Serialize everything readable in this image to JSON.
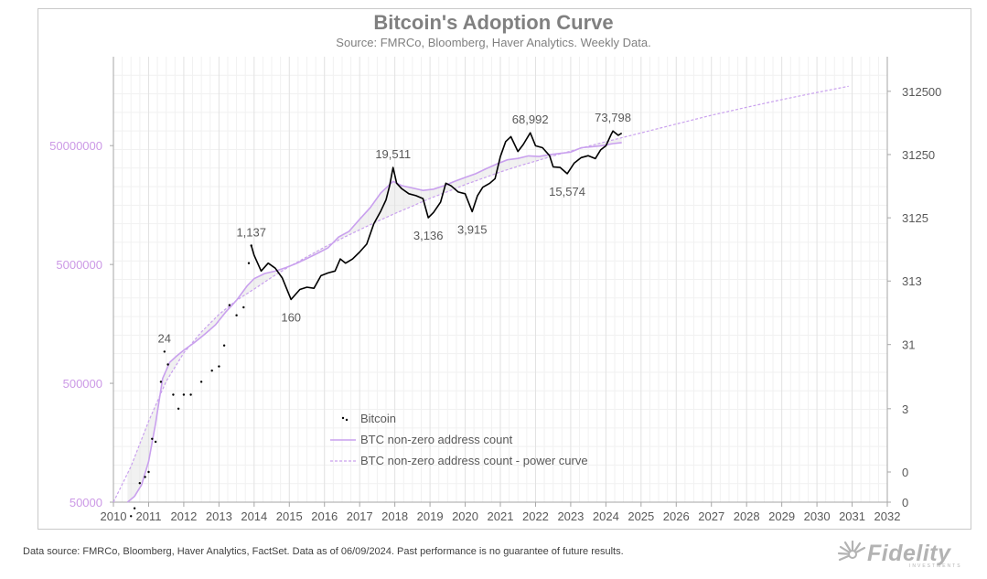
{
  "chart_data": {
    "type": "line",
    "title": "Bitcoin's Adoption Curve",
    "subtitle": "Source: FMRCo, Bloomberg, Haver Analytics. Weekly Data.",
    "x_axis": {
      "range": [
        2010,
        2032
      ],
      "ticks": [
        "2010",
        "2011",
        "2012",
        "2013",
        "2014",
        "2015",
        "2016",
        "2017",
        "2018",
        "2019",
        "2020",
        "2021",
        "2022",
        "2023",
        "2024",
        "2025",
        "2026",
        "2027",
        "2028",
        "2029",
        "2030",
        "2031",
        "2032"
      ]
    },
    "y_left": {
      "scale": "log",
      "range": [
        50000,
        280000000
      ],
      "ticks": [
        {
          "value": 50000,
          "label": "50000"
        },
        {
          "value": 500000,
          "label": "500000"
        },
        {
          "value": 5000000,
          "label": "5000000"
        },
        {
          "value": 50000000,
          "label": "50000000"
        }
      ],
      "color": "#cc99e6"
    },
    "y_right": {
      "scale": "log",
      "ticks": [
        {
          "value": 0.1,
          "label": "0"
        },
        {
          "value": 0.3,
          "label": "0"
        },
        {
          "value": 3,
          "label": "3"
        },
        {
          "value": 31,
          "label": "31"
        },
        {
          "value": 313,
          "label": "313"
        },
        {
          "value": 3125,
          "label": "3125"
        },
        {
          "value": 31250,
          "label": "31250"
        },
        {
          "value": 312500,
          "label": "312500"
        }
      ],
      "range": [
        0.1,
        1100000
      ]
    },
    "grid": true,
    "legend": {
      "placement": "bottom-center",
      "entries": [
        {
          "name": "Bitcoin",
          "style": "dots"
        },
        {
          "name": "BTC non-zero address count",
          "style": "solid"
        },
        {
          "name": "BTC non-zero address count - power curve",
          "style": "dashed"
        }
      ]
    },
    "annotations": [
      {
        "label": "24",
        "x": 2011.45,
        "y": 24
      },
      {
        "label": "1,137",
        "x": 2013.92,
        "y": 1137
      },
      {
        "label": "160",
        "x": 2015.05,
        "y": 160
      },
      {
        "label": "19,511",
        "x": 2017.95,
        "y": 19511
      },
      {
        "label": "3,136",
        "x": 2018.95,
        "y": 3136
      },
      {
        "label": "3,915",
        "x": 2020.2,
        "y": 3915
      },
      {
        "label": "68,992",
        "x": 2021.85,
        "y": 68992
      },
      {
        "label": "15,574",
        "x": 2022.9,
        "y": 15574
      },
      {
        "label": "73,798",
        "x": 2024.2,
        "y": 73798
      }
    ],
    "series": [
      {
        "name": "Bitcoin",
        "axis": "right",
        "color": "#000000",
        "points": [
          [
            2010.5,
            0.06
          ],
          [
            2010.6,
            0.08
          ],
          [
            2010.75,
            0.2
          ],
          [
            2010.9,
            0.25
          ],
          [
            2011.0,
            0.3
          ],
          [
            2011.1,
            1
          ],
          [
            2011.2,
            0.9
          ],
          [
            2011.35,
            8
          ],
          [
            2011.45,
            24
          ],
          [
            2011.55,
            15
          ],
          [
            2011.7,
            5
          ],
          [
            2011.85,
            3
          ],
          [
            2012.0,
            5
          ],
          [
            2012.2,
            5
          ],
          [
            2012.5,
            8
          ],
          [
            2012.8,
            12
          ],
          [
            2013.0,
            14
          ],
          [
            2013.15,
            30
          ],
          [
            2013.3,
            130
          ],
          [
            2013.5,
            90
          ],
          [
            2013.7,
            120
          ],
          [
            2013.85,
            600
          ],
          [
            2013.92,
            1137
          ],
          [
            2014.0,
            800
          ],
          [
            2014.2,
            450
          ],
          [
            2014.4,
            600
          ],
          [
            2014.6,
            500
          ],
          [
            2014.8,
            350
          ],
          [
            2015.05,
            160
          ],
          [
            2015.3,
            230
          ],
          [
            2015.5,
            250
          ],
          [
            2015.7,
            240
          ],
          [
            2015.9,
            380
          ],
          [
            2016.1,
            420
          ],
          [
            2016.3,
            450
          ],
          [
            2016.45,
            700
          ],
          [
            2016.6,
            600
          ],
          [
            2016.8,
            700
          ],
          [
            2017.0,
            900
          ],
          [
            2017.2,
            1200
          ],
          [
            2017.4,
            2500
          ],
          [
            2017.6,
            4000
          ],
          [
            2017.75,
            6000
          ],
          [
            2017.85,
            10000
          ],
          [
            2017.95,
            19511
          ],
          [
            2018.05,
            11000
          ],
          [
            2018.2,
            9000
          ],
          [
            2018.4,
            7500
          ],
          [
            2018.6,
            7000
          ],
          [
            2018.8,
            6300
          ],
          [
            2018.95,
            3136
          ],
          [
            2019.1,
            3800
          ],
          [
            2019.3,
            5500
          ],
          [
            2019.45,
            11000
          ],
          [
            2019.6,
            10000
          ],
          [
            2019.8,
            8000
          ],
          [
            2020.0,
            7500
          ],
          [
            2020.2,
            3915
          ],
          [
            2020.35,
            7000
          ],
          [
            2020.5,
            9500
          ],
          [
            2020.7,
            11000
          ],
          [
            2020.85,
            13000
          ],
          [
            2021.0,
            29000
          ],
          [
            2021.15,
            50000
          ],
          [
            2021.3,
            60000
          ],
          [
            2021.5,
            35000
          ],
          [
            2021.65,
            45000
          ],
          [
            2021.85,
            68992
          ],
          [
            2022.0,
            43000
          ],
          [
            2022.2,
            40000
          ],
          [
            2022.4,
            30000
          ],
          [
            2022.5,
            20000
          ],
          [
            2022.7,
            19500
          ],
          [
            2022.9,
            15574
          ],
          [
            2023.1,
            23000
          ],
          [
            2023.3,
            28000
          ],
          [
            2023.5,
            30000
          ],
          [
            2023.7,
            27000
          ],
          [
            2023.85,
            37000
          ],
          [
            2024.0,
            43000
          ],
          [
            2024.15,
            65000
          ],
          [
            2024.2,
            73798
          ],
          [
            2024.35,
            63000
          ],
          [
            2024.45,
            68000
          ]
        ]
      },
      {
        "name": "BTC non-zero address count",
        "axis": "left",
        "color": "#c9a0ee",
        "points": [
          [
            2010.4,
            50000
          ],
          [
            2010.6,
            56000
          ],
          [
            2010.8,
            70000
          ],
          [
            2011.0,
            110000
          ],
          [
            2011.2,
            230000
          ],
          [
            2011.4,
            550000
          ],
          [
            2011.6,
            750000
          ],
          [
            2011.8,
            850000
          ],
          [
            2012.0,
            950000
          ],
          [
            2012.3,
            1100000
          ],
          [
            2012.6,
            1300000
          ],
          [
            2012.9,
            1550000
          ],
          [
            2013.2,
            2000000
          ],
          [
            2013.5,
            2500000
          ],
          [
            2013.8,
            3300000
          ],
          [
            2014.0,
            3800000
          ],
          [
            2014.3,
            4200000
          ],
          [
            2014.6,
            4400000
          ],
          [
            2014.9,
            4700000
          ],
          [
            2015.2,
            5100000
          ],
          [
            2015.5,
            5600000
          ],
          [
            2015.8,
            6200000
          ],
          [
            2016.1,
            6900000
          ],
          [
            2016.4,
            8500000
          ],
          [
            2016.7,
            9500000
          ],
          [
            2017.0,
            12000000
          ],
          [
            2017.3,
            15000000
          ],
          [
            2017.6,
            20000000
          ],
          [
            2017.95,
            25000000
          ],
          [
            2018.2,
            23000000
          ],
          [
            2018.5,
            22000000
          ],
          [
            2018.8,
            21000000
          ],
          [
            2019.1,
            21500000
          ],
          [
            2019.4,
            23000000
          ],
          [
            2019.7,
            25000000
          ],
          [
            2020.0,
            27000000
          ],
          [
            2020.3,
            29000000
          ],
          [
            2020.6,
            32000000
          ],
          [
            2020.9,
            35000000
          ],
          [
            2021.2,
            38000000
          ],
          [
            2021.5,
            39000000
          ],
          [
            2021.8,
            41000000
          ],
          [
            2022.1,
            40500000
          ],
          [
            2022.4,
            42000000
          ],
          [
            2022.7,
            43000000
          ],
          [
            2023.0,
            44000000
          ],
          [
            2023.3,
            48000000
          ],
          [
            2023.6,
            49000000
          ],
          [
            2023.9,
            50000000
          ],
          [
            2024.2,
            52000000
          ],
          [
            2024.45,
            53000000
          ]
        ]
      },
      {
        "name": "BTC non-zero address count - power curve",
        "axis": "left",
        "color": "#c9a0ee",
        "style": "dashed",
        "points": [
          [
            2010.0,
            50000
          ],
          [
            2010.5,
            100000
          ],
          [
            2011.0,
            240000
          ],
          [
            2011.5,
            520000
          ],
          [
            2012.0,
            900000
          ],
          [
            2012.5,
            1350000
          ],
          [
            2013.0,
            1900000
          ],
          [
            2013.5,
            2500000
          ],
          [
            2014.0,
            3100000
          ],
          [
            2014.5,
            3900000
          ],
          [
            2015.0,
            4800000
          ],
          [
            2015.5,
            5800000
          ],
          [
            2016.0,
            7000000
          ],
          [
            2016.5,
            8300000
          ],
          [
            2017.0,
            9800000
          ],
          [
            2017.5,
            11500000
          ],
          [
            2018.0,
            13400000
          ],
          [
            2018.5,
            15500000
          ],
          [
            2019.0,
            18000000
          ],
          [
            2019.5,
            20500000
          ],
          [
            2020.0,
            23500000
          ],
          [
            2020.5,
            26500000
          ],
          [
            2021.0,
            30000000
          ],
          [
            2021.5,
            33500000
          ],
          [
            2022.0,
            37000000
          ],
          [
            2022.5,
            41000000
          ],
          [
            2023.0,
            45000000
          ],
          [
            2023.5,
            49500000
          ],
          [
            2024.0,
            54000000
          ],
          [
            2025.0,
            64000000
          ],
          [
            2026.0,
            76000000
          ],
          [
            2027.0,
            90000000
          ],
          [
            2028.0,
            105000000
          ],
          [
            2029.0,
            122000000
          ],
          [
            2030.0,
            140000000
          ],
          [
            2030.9,
            158000000
          ]
        ]
      }
    ]
  },
  "footer": {
    "note": "Data source: FMRCo, Bloomberg, Haver Analytics, FactSet. Data as of 06/09/2024. Past performance is no guarantee of future results."
  },
  "logo": {
    "text": "Fidelity",
    "subtext": "INVESTMENTS"
  }
}
